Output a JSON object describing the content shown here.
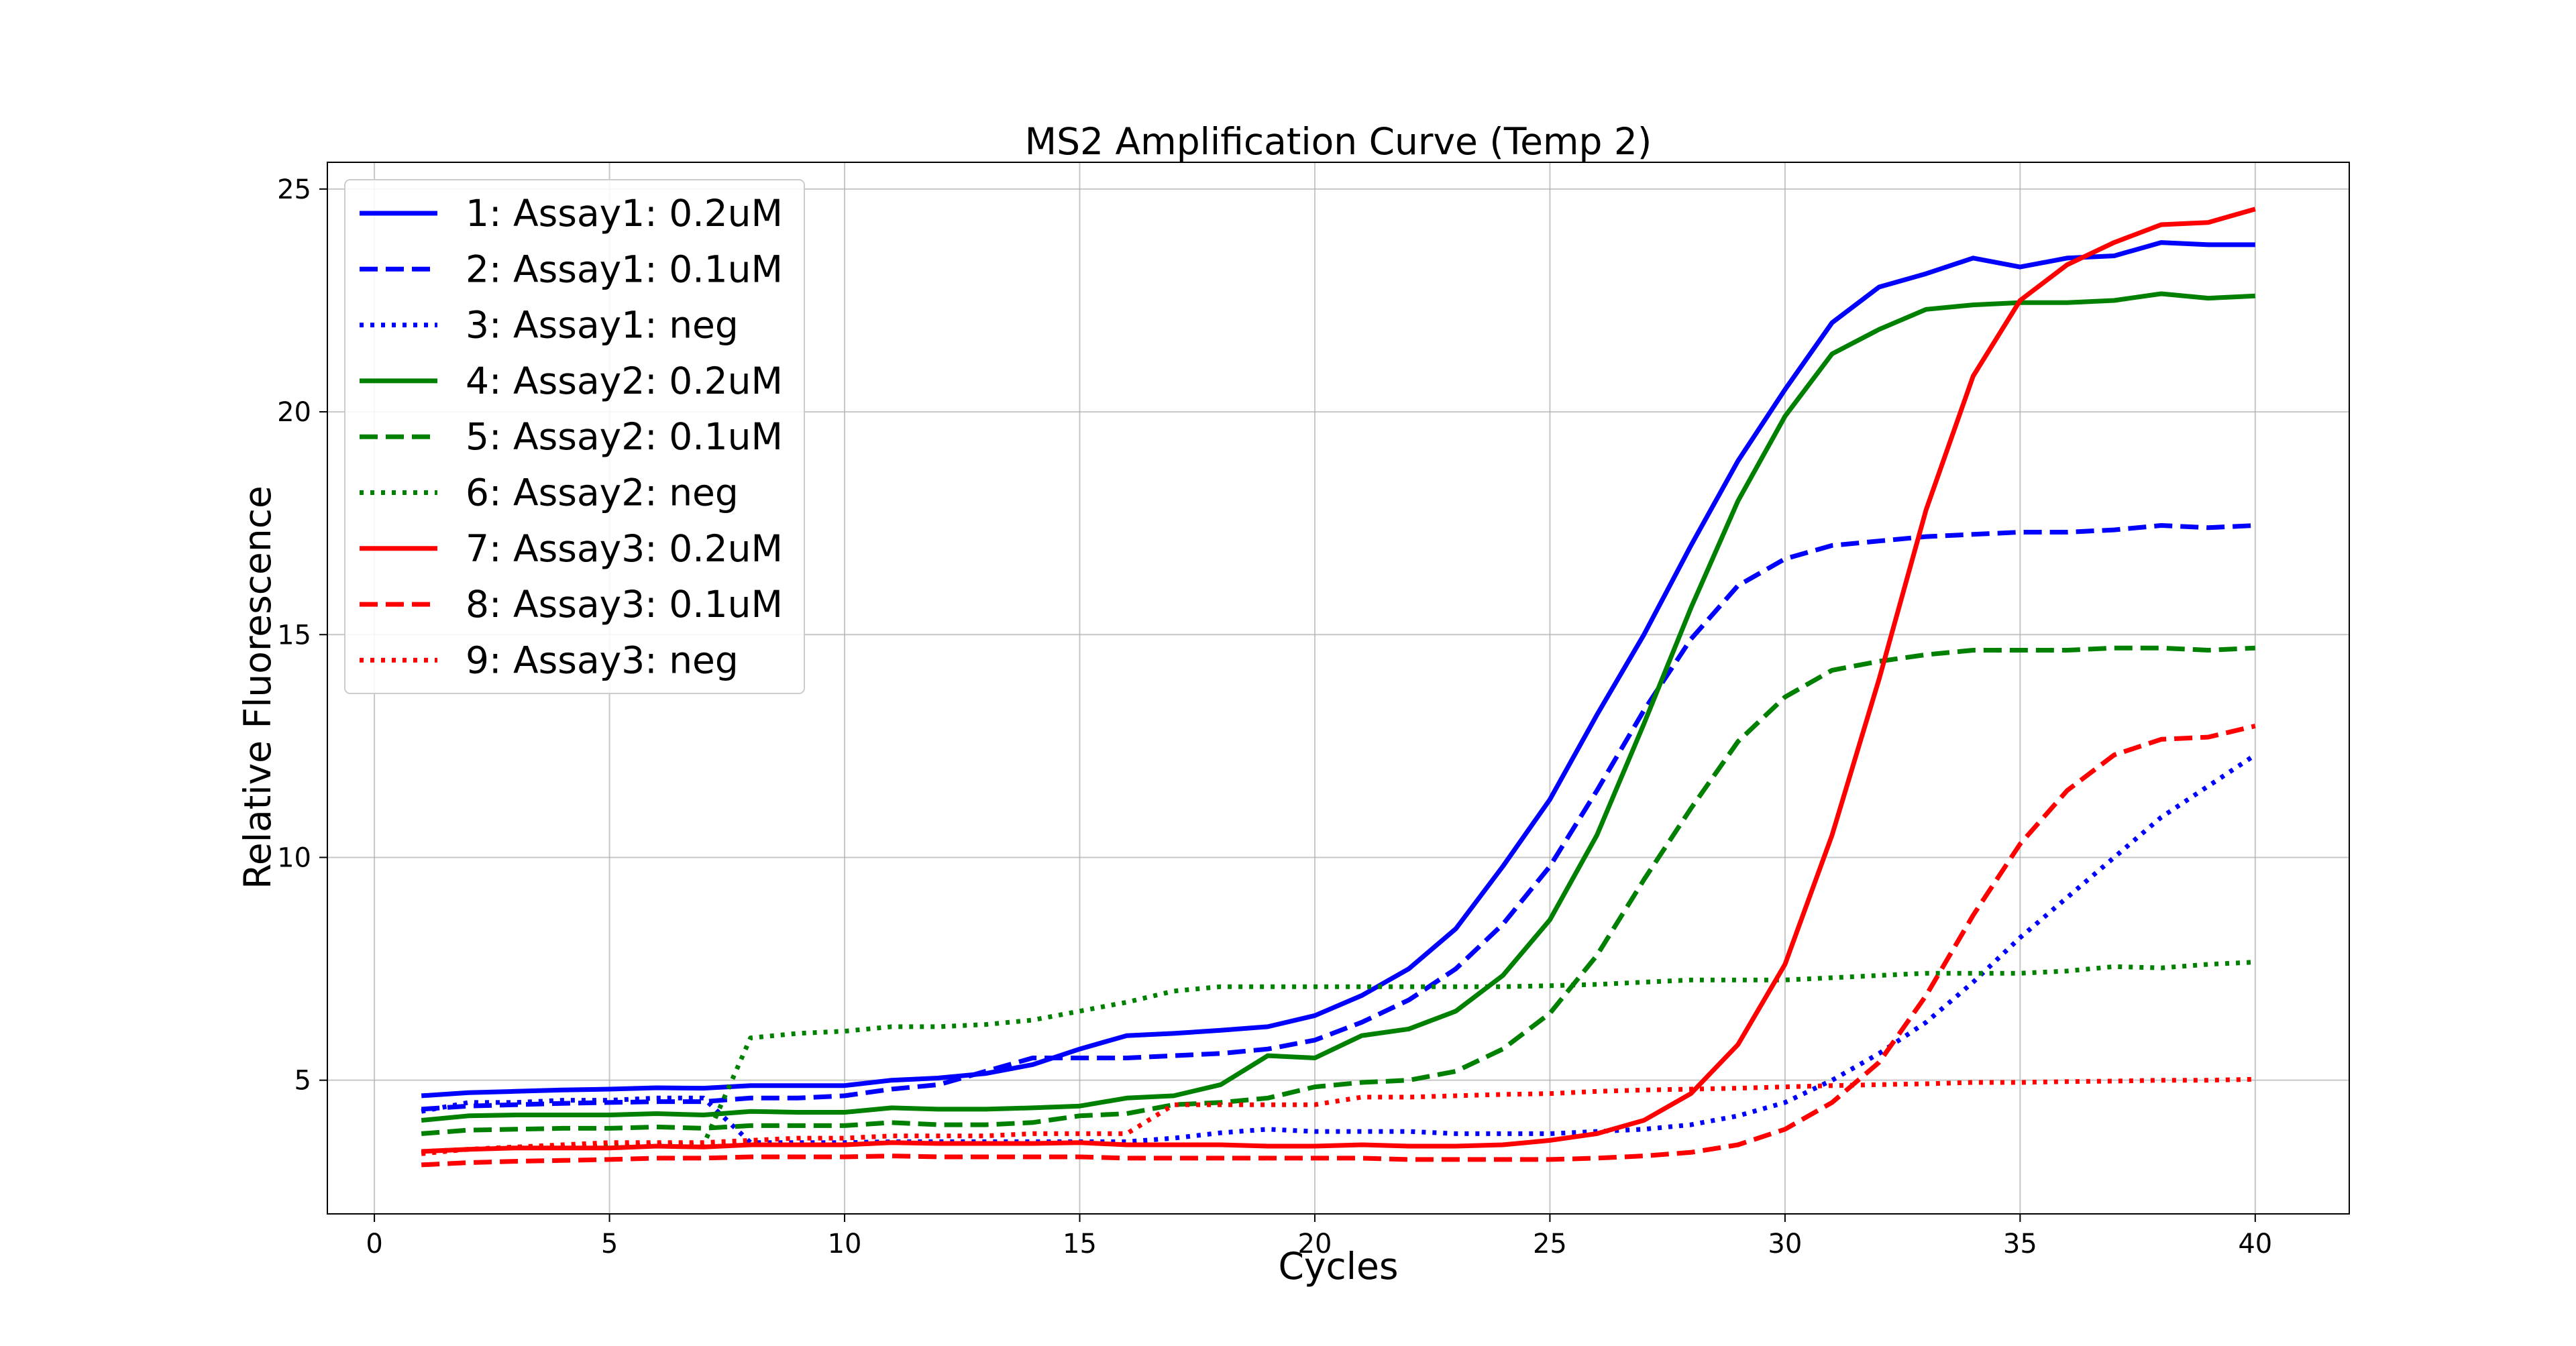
{
  "chart_data": {
    "type": "line",
    "title": "MS2 Amplification Curve (Temp 2)",
    "xlabel": "Cycles",
    "ylabel": "Relative Fluorescence",
    "xlim": [
      -1,
      42
    ],
    "ylim": [
      2,
      25.6
    ],
    "xticks": [
      0,
      5,
      10,
      15,
      20,
      25,
      30,
      35,
      40
    ],
    "yticks": [
      5,
      10,
      15,
      20,
      25
    ],
    "grid": true,
    "legend_position": "top-left",
    "x": [
      1,
      2,
      3,
      4,
      5,
      6,
      7,
      8,
      9,
      10,
      11,
      12,
      13,
      14,
      15,
      16,
      17,
      18,
      19,
      20,
      21,
      22,
      23,
      24,
      25,
      26,
      27,
      28,
      29,
      30,
      31,
      32,
      33,
      34,
      35,
      36,
      37,
      38,
      39,
      40
    ],
    "series": [
      {
        "name": "1: Assay1: 0.2uM",
        "color": "#0000ff",
        "style": "solid",
        "values": [
          4.65,
          4.72,
          4.75,
          4.78,
          4.8,
          4.83,
          4.82,
          4.88,
          4.88,
          4.88,
          5.0,
          5.05,
          5.15,
          5.35,
          5.7,
          6.0,
          6.05,
          6.12,
          6.2,
          6.45,
          6.9,
          7.5,
          8.4,
          9.8,
          11.3,
          13.2,
          15.0,
          17.0,
          18.9,
          20.5,
          22.0,
          22.8,
          23.1,
          23.45,
          23.25,
          23.45,
          23.5,
          23.8,
          23.75,
          23.75
        ]
      },
      {
        "name": "2: Assay1: 0.1uM",
        "color": "#0000ff",
        "style": "dashed",
        "values": [
          4.35,
          4.42,
          4.45,
          4.48,
          4.5,
          4.52,
          4.52,
          4.6,
          4.6,
          4.65,
          4.8,
          4.9,
          5.2,
          5.5,
          5.5,
          5.5,
          5.55,
          5.6,
          5.7,
          5.9,
          6.3,
          6.8,
          7.5,
          8.5,
          9.8,
          11.5,
          13.3,
          14.9,
          16.1,
          16.7,
          17.0,
          17.1,
          17.2,
          17.25,
          17.3,
          17.3,
          17.35,
          17.45,
          17.4,
          17.45
        ]
      },
      {
        "name": "3: Assay1: neg",
        "color": "#0000ff",
        "style": "dotted",
        "values": [
          4.3,
          4.5,
          4.5,
          4.55,
          4.55,
          4.6,
          4.6,
          3.6,
          3.6,
          3.6,
          3.62,
          3.62,
          3.62,
          3.62,
          3.62,
          3.62,
          3.7,
          3.82,
          3.9,
          3.85,
          3.85,
          3.85,
          3.8,
          3.8,
          3.8,
          3.85,
          3.9,
          4.0,
          4.2,
          4.5,
          5.0,
          5.6,
          6.3,
          7.2,
          8.2,
          9.1,
          10.0,
          10.9,
          11.6,
          12.3
        ]
      },
      {
        "name": "4: Assay2: 0.2uM",
        "color": "#008000",
        "style": "solid",
        "values": [
          4.1,
          4.2,
          4.22,
          4.22,
          4.22,
          4.25,
          4.22,
          4.3,
          4.28,
          4.28,
          4.38,
          4.35,
          4.35,
          4.38,
          4.42,
          4.6,
          4.65,
          4.9,
          5.55,
          5.5,
          6.0,
          6.15,
          6.55,
          7.35,
          8.6,
          10.5,
          13.0,
          15.6,
          18.0,
          19.9,
          21.3,
          21.85,
          22.3,
          22.4,
          22.45,
          22.45,
          22.5,
          22.65,
          22.55,
          22.6
        ]
      },
      {
        "name": "5: Assay2: 0.1uM",
        "color": "#008000",
        "style": "dashed",
        "values": [
          3.8,
          3.88,
          3.9,
          3.92,
          3.92,
          3.95,
          3.92,
          3.98,
          3.98,
          3.98,
          4.05,
          4.0,
          4.0,
          4.05,
          4.2,
          4.25,
          4.45,
          4.5,
          4.6,
          4.85,
          4.95,
          5.0,
          5.2,
          5.7,
          6.5,
          7.8,
          9.5,
          11.1,
          12.6,
          13.6,
          14.2,
          14.4,
          14.55,
          14.65,
          14.65,
          14.65,
          14.7,
          14.7,
          14.65,
          14.7
        ]
      },
      {
        "name": "6: Assay2: neg",
        "color": "#008000",
        "style": "dotted",
        "values": [
          3.4,
          3.45,
          3.5,
          3.5,
          3.52,
          3.55,
          3.55,
          5.95,
          6.05,
          6.1,
          6.2,
          6.2,
          6.25,
          6.35,
          6.55,
          6.75,
          7.0,
          7.1,
          7.1,
          7.1,
          7.1,
          7.1,
          7.1,
          7.1,
          7.12,
          7.15,
          7.2,
          7.25,
          7.25,
          7.25,
          7.3,
          7.35,
          7.4,
          7.4,
          7.4,
          7.45,
          7.55,
          7.52,
          7.6,
          7.65
        ]
      },
      {
        "name": "7: Assay3: 0.2uM",
        "color": "#ff0000",
        "style": "solid",
        "values": [
          3.4,
          3.45,
          3.48,
          3.48,
          3.48,
          3.52,
          3.5,
          3.55,
          3.55,
          3.55,
          3.6,
          3.58,
          3.58,
          3.58,
          3.6,
          3.55,
          3.55,
          3.55,
          3.52,
          3.52,
          3.55,
          3.52,
          3.52,
          3.55,
          3.65,
          3.8,
          4.1,
          4.7,
          5.8,
          7.6,
          10.5,
          14.0,
          17.8,
          20.8,
          22.5,
          23.3,
          23.8,
          24.2,
          24.25,
          24.55
        ]
      },
      {
        "name": "8: Assay3: 0.1uM",
        "color": "#ff0000",
        "style": "dashed",
        "values": [
          3.1,
          3.15,
          3.18,
          3.2,
          3.22,
          3.25,
          3.25,
          3.28,
          3.28,
          3.28,
          3.3,
          3.28,
          3.28,
          3.28,
          3.28,
          3.25,
          3.25,
          3.25,
          3.25,
          3.25,
          3.25,
          3.22,
          3.22,
          3.22,
          3.22,
          3.25,
          3.3,
          3.38,
          3.55,
          3.9,
          4.5,
          5.4,
          6.9,
          8.7,
          10.3,
          11.5,
          12.3,
          12.65,
          12.7,
          12.95
        ]
      },
      {
        "name": "9: Assay3: neg",
        "color": "#ff0000",
        "style": "dotted",
        "values": [
          3.35,
          3.45,
          3.5,
          3.55,
          3.6,
          3.6,
          3.6,
          3.65,
          3.7,
          3.7,
          3.75,
          3.75,
          3.75,
          3.8,
          3.8,
          3.8,
          4.45,
          4.45,
          4.45,
          4.45,
          4.62,
          4.62,
          4.65,
          4.68,
          4.7,
          4.75,
          4.78,
          4.8,
          4.82,
          4.85,
          4.88,
          4.9,
          4.92,
          4.95,
          4.95,
          4.97,
          4.98,
          5.0,
          5.0,
          5.02
        ]
      }
    ]
  }
}
